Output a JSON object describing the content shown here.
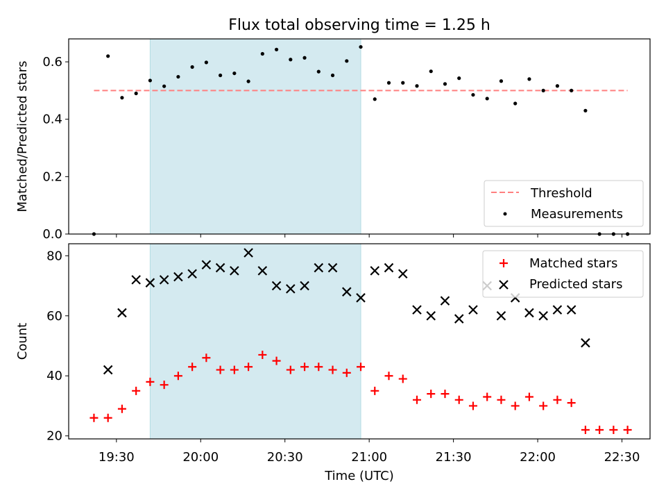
{
  "chart_data": {
    "type": "scatter",
    "title": "Flux total observing time = 1.25 h",
    "x_unit": "UTC time",
    "x_ticks": [
      "19:30",
      "20:00",
      "20:30",
      "21:00",
      "21:30",
      "22:00",
      "22:30"
    ],
    "xlim": [
      "19:13",
      "22:40"
    ],
    "xlabel": "Time (UTC)",
    "shaded_region": {
      "start": "19:42",
      "end": "20:57",
      "color": "#d4eaf0"
    },
    "panels": [
      {
        "name": "ratio",
        "ylabel": "Matched/Predicted stars",
        "ylim": [
          0,
          0.68
        ],
        "y_ticks": [
          "0.0",
          "0.2",
          "0.4",
          "0.6"
        ],
        "legend_position": "lower-right",
        "series": [
          {
            "name": "Threshold",
            "kind": "dashed-line",
            "color": "#ff7f7f",
            "x": [
              "19:22",
              "22:32"
            ],
            "y": [
              0.5,
              0.5
            ]
          },
          {
            "name": "Measurements",
            "kind": "dot",
            "color": "#000000",
            "x": [
              "19:22",
              "19:27",
              "19:32",
              "19:37",
              "19:42",
              "19:47",
              "19:52",
              "19:57",
              "20:02",
              "20:07",
              "20:12",
              "20:17",
              "20:22",
              "20:27",
              "20:32",
              "20:37",
              "20:42",
              "20:47",
              "20:52",
              "20:57",
              "21:02",
              "21:07",
              "21:12",
              "21:17",
              "21:22",
              "21:27",
              "21:32",
              "21:37",
              "21:42",
              "21:47",
              "21:52",
              "21:57",
              "22:02",
              "22:07",
              "22:12",
              "22:17",
              "22:22",
              "22:27",
              "22:32"
            ],
            "y": [
              0.0,
              0.62,
              0.475,
              0.49,
              0.535,
              0.515,
              0.548,
              0.582,
              0.598,
              0.553,
              0.56,
              0.532,
              0.628,
              0.643,
              0.608,
              0.614,
              0.566,
              0.553,
              0.603,
              0.652,
              0.47,
              0.527,
              0.527,
              0.516,
              0.567,
              0.523,
              0.543,
              0.485,
              0.472,
              0.533,
              0.455,
              0.54,
              0.5,
              0.516,
              0.5,
              0.43,
              0.0,
              0.0,
              0.0
            ]
          }
        ]
      },
      {
        "name": "count",
        "ylabel": "Count",
        "ylim": [
          19,
          84
        ],
        "y_ticks": [
          "20",
          "40",
          "60",
          "80"
        ],
        "legend_position": "upper-right",
        "series": [
          {
            "name": "Matched stars",
            "kind": "plus",
            "color": "#ff0000",
            "x": [
              "19:22",
              "19:27",
              "19:32",
              "19:37",
              "19:42",
              "19:47",
              "19:52",
              "19:57",
              "20:02",
              "20:07",
              "20:12",
              "20:17",
              "20:22",
              "20:27",
              "20:32",
              "20:37",
              "20:42",
              "20:47",
              "20:52",
              "20:57",
              "21:02",
              "21:07",
              "21:12",
              "21:17",
              "21:22",
              "21:27",
              "21:32",
              "21:37",
              "21:42",
              "21:47",
              "21:52",
              "21:57",
              "22:02",
              "22:07",
              "22:12",
              "22:17",
              "22:22",
              "22:27",
              "22:32"
            ],
            "y": [
              26,
              26,
              29,
              35,
              38,
              37,
              40,
              43,
              46,
              42,
              42,
              43,
              47,
              45,
              42,
              43,
              43,
              42,
              41,
              43,
              35,
              40,
              39,
              32,
              34,
              34,
              32,
              30,
              33,
              32,
              30,
              33,
              30,
              32,
              31,
              22,
              22,
              22,
              22
            ]
          },
          {
            "name": "Predicted stars",
            "kind": "cross",
            "color": "#000000",
            "x": [
              "19:27",
              "19:32",
              "19:37",
              "19:42",
              "19:47",
              "19:52",
              "19:57",
              "20:02",
              "20:07",
              "20:12",
              "20:17",
              "20:22",
              "20:27",
              "20:32",
              "20:37",
              "20:42",
              "20:47",
              "20:52",
              "20:57",
              "21:02",
              "21:07",
              "21:12",
              "21:17",
              "21:22",
              "21:27",
              "21:32",
              "21:37",
              "21:42",
              "21:47",
              "21:52",
              "21:57",
              "22:02",
              "22:07",
              "22:12",
              "22:17"
            ],
            "y": [
              42,
              61,
              72,
              71,
              72,
              73,
              74,
              77,
              76,
              75,
              81,
              75,
              70,
              69,
              70,
              76,
              76,
              68,
              66,
              75,
              76,
              74,
              62,
              60,
              65,
              59,
              62,
              70,
              60,
              66,
              61,
              60,
              62,
              62,
              51
            ]
          }
        ]
      }
    ]
  }
}
